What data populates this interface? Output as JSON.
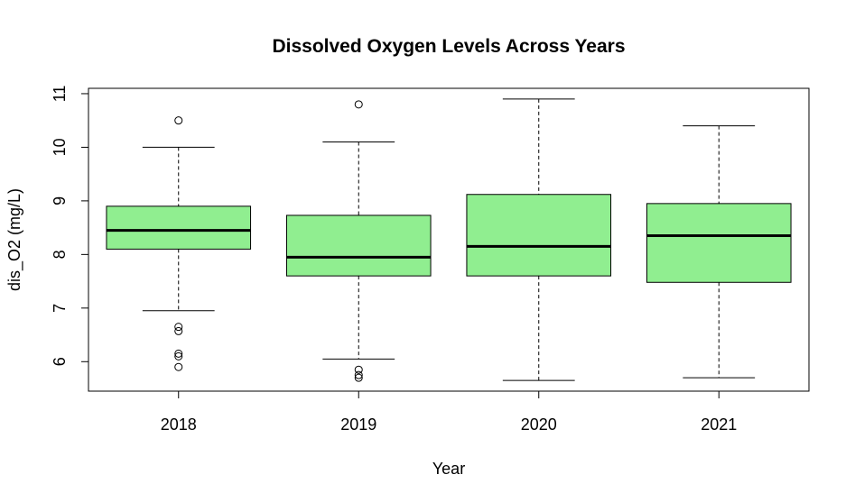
{
  "chart_data": {
    "type": "boxplot",
    "title": "Dissolved Oxygen Levels Across Years",
    "xlabel": "Year",
    "ylabel": "dis_O2 (mg/L)",
    "categories": [
      "2018",
      "2019",
      "2020",
      "2021"
    ],
    "ylim": [
      5.45,
      11.1
    ],
    "yticks": [
      6,
      7,
      8,
      9,
      10,
      11
    ],
    "box_color": "#90EE90",
    "grid": false,
    "boxes": [
      {
        "category": "2018",
        "whisker_low": 6.95,
        "q1": 8.1,
        "median": 8.45,
        "q3": 8.9,
        "whisker_high": 10.0,
        "outliers": [
          10.5,
          6.65,
          6.57,
          6.15,
          6.1,
          5.9
        ]
      },
      {
        "category": "2019",
        "whisker_low": 6.05,
        "q1": 7.6,
        "median": 7.95,
        "q3": 8.73,
        "whisker_high": 10.1,
        "outliers": [
          10.8,
          5.85,
          5.75,
          5.7
        ]
      },
      {
        "category": "2020",
        "whisker_low": 5.65,
        "q1": 7.6,
        "median": 8.15,
        "q3": 9.12,
        "whisker_high": 10.9,
        "outliers": []
      },
      {
        "category": "2021",
        "whisker_low": 5.7,
        "q1": 7.48,
        "median": 8.35,
        "q3": 8.95,
        "whisker_high": 10.4,
        "outliers": []
      }
    ]
  }
}
